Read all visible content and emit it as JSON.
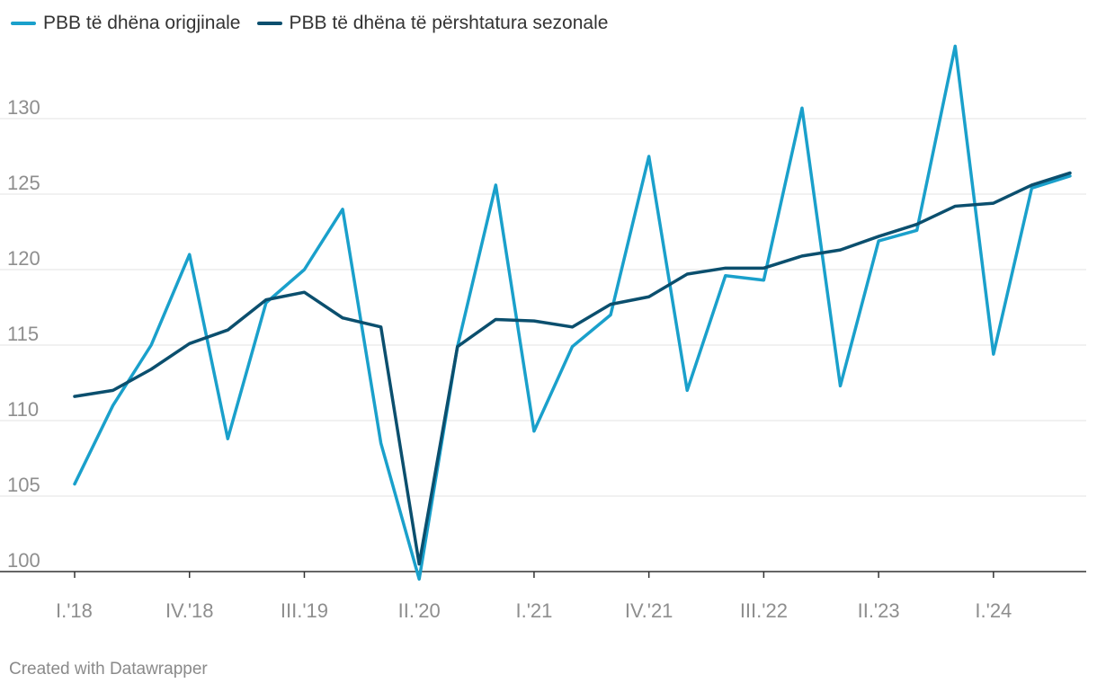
{
  "chart_data": {
    "type": "line",
    "title": "",
    "xlabel": "",
    "ylabel": "",
    "ylim": [
      100,
      135
    ],
    "yticks": [
      100,
      105,
      110,
      115,
      120,
      125,
      130
    ],
    "grid": true,
    "legend_position": "top-left",
    "x": [
      "I.'18",
      "II.'18",
      "III.'18",
      "IV.'18",
      "I.'19",
      "II.'19",
      "III.'19",
      "IV.'19",
      "I.'20",
      "II.'20",
      "III.'20",
      "IV.'20",
      "I.'21",
      "II.'21",
      "III.'21",
      "IV.'21",
      "I.'22",
      "II.'22",
      "III.'22",
      "IV.'22",
      "I.'23",
      "II.'23",
      "III.'23",
      "IV.'23",
      "I.'24",
      "II.'24",
      "III.'24"
    ],
    "xticks": [
      "I.'18",
      "IV.'18",
      "III.'19",
      "II.'20",
      "I.'21",
      "IV.'21",
      "III.'22",
      "II.'23",
      "I.'24"
    ],
    "series": [
      {
        "name": "PBB të dhëna origjinale",
        "color": "#1aa0cb",
        "values": [
          105.8,
          111.0,
          115.0,
          121.0,
          108.8,
          117.8,
          120.0,
          124.0,
          108.5,
          99.5,
          114.9,
          125.6,
          109.3,
          114.9,
          117.0,
          127.5,
          112.0,
          119.6,
          119.3,
          130.7,
          112.3,
          121.9,
          122.6,
          134.8,
          114.4,
          125.4,
          126.2
        ]
      },
      {
        "name": "PBB të dhëna të përshtatura sezonale",
        "color": "#0b4f6e",
        "values": [
          111.6,
          112.0,
          113.4,
          115.1,
          116.0,
          118.0,
          118.5,
          116.8,
          116.2,
          100.5,
          114.9,
          116.7,
          116.6,
          116.2,
          117.7,
          118.2,
          119.7,
          120.1,
          120.1,
          120.9,
          121.3,
          122.2,
          123.0,
          124.2,
          124.4,
          125.6,
          126.4
        ]
      }
    ]
  },
  "footer": "Created with Datawrapper"
}
